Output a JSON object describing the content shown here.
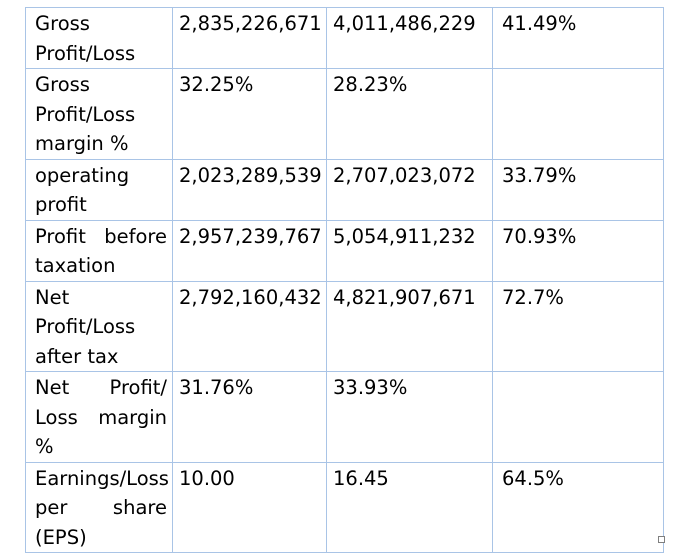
{
  "table": {
    "rows": [
      {
        "label": "Gross Profit/Loss",
        "v1": "2,835,226,671",
        "v2": "4,011,486,229",
        "change": "41.49%"
      },
      {
        "label": "Gross Profit/Loss margin %",
        "v1": "32.25%",
        "v2": "28.23%",
        "change": ""
      },
      {
        "label": "operating profit",
        "v1": "2,023,289,539",
        "v2": "2,707,023,072",
        "change": "33.79%"
      },
      {
        "label": "Profit before taxation",
        "v1": "2,957,239,767",
        "v2": "5,054,911,232",
        "change": "70.93%"
      },
      {
        "label": "Net Profit/Loss after tax",
        "v1": "2,792,160,432",
        "v2": "4,821,907,671",
        "change": "72.7%"
      },
      {
        "label": "Net Profit/ Loss margin %",
        "v1": "31.76%",
        "v2": "33.93%",
        "change": ""
      },
      {
        "label": "Earnings/Loss per share (EPS)",
        "v1": "10.00",
        "v2": "16.45",
        "change": "64.5%"
      }
    ]
  }
}
